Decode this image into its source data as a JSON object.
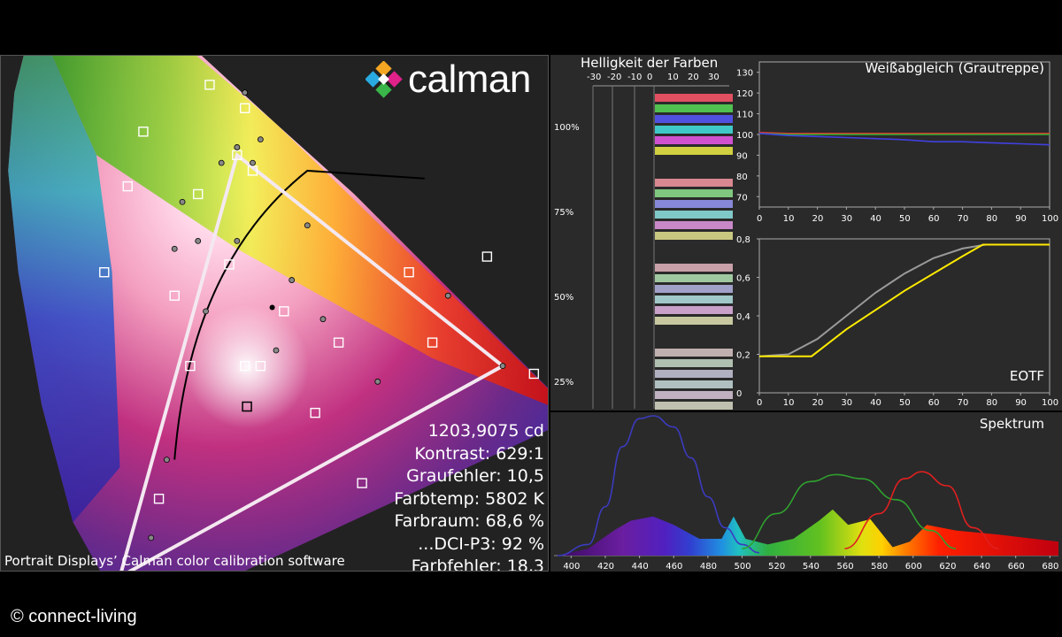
{
  "logo": {
    "text": "calman"
  },
  "footer": {
    "copyright": "© connect-living"
  },
  "caption": "Portrait Displays’ Calman color calibration software",
  "stats": [
    "1203,9075 cd",
    "Kontrast: 629:1",
    "Graufehler: 10,5",
    "Farbtemp: 5802 K",
    "Farbraum: 68,6 %",
    "...DCI-P3: 92 %",
    "Farbfehler: 18,3"
  ],
  "colors": {
    "panel_bg": "#2a2a2a",
    "yellow_line": "#ffeb00",
    "gray_line": "#9a9a9a"
  },
  "chart_data": [
    {
      "id": "cie",
      "type": "scatter",
      "title": "",
      "description_free": true,
      "gamut_target_triangle": [
        [
          0.68,
          0.32
        ],
        [
          0.265,
          0.69
        ],
        [
          0.15,
          0.06
        ]
      ],
      "measured_triangle": [
        [
          0.64,
          0.33
        ],
        [
          0.3,
          0.6
        ],
        [
          0.15,
          0.06
        ]
      ],
      "white_point": [
        0.3127,
        0.329
      ],
      "target_squares": [
        [
          0.3,
          0.6
        ],
        [
          0.265,
          0.69
        ],
        [
          0.18,
          0.63
        ],
        [
          0.16,
          0.56
        ],
        [
          0.13,
          0.45
        ],
        [
          0.22,
          0.42
        ],
        [
          0.25,
          0.55
        ],
        [
          0.31,
          0.66
        ],
        [
          0.32,
          0.58
        ],
        [
          0.29,
          0.46
        ],
        [
          0.36,
          0.4
        ],
        [
          0.43,
          0.36
        ],
        [
          0.52,
          0.45
        ],
        [
          0.62,
          0.47
        ],
        [
          0.68,
          0.32
        ],
        [
          0.55,
          0.36
        ],
        [
          0.4,
          0.27
        ],
        [
          0.24,
          0.33
        ],
        [
          0.2,
          0.16
        ],
        [
          0.15,
          0.06
        ],
        [
          0.46,
          0.18
        ],
        [
          0.33,
          0.33
        ],
        [
          0.31,
          0.33
        ]
      ],
      "measured_points": [
        [
          0.3,
          0.61
        ],
        [
          0.31,
          0.68
        ],
        [
          0.28,
          0.59
        ],
        [
          0.23,
          0.54
        ],
        [
          0.22,
          0.48
        ],
        [
          0.25,
          0.49
        ],
        [
          0.32,
          0.59
        ],
        [
          0.33,
          0.62
        ],
        [
          0.3,
          0.49
        ],
        [
          0.37,
          0.44
        ],
        [
          0.39,
          0.51
        ],
        [
          0.57,
          0.42
        ],
        [
          0.64,
          0.33
        ],
        [
          0.48,
          0.31
        ],
        [
          0.41,
          0.39
        ],
        [
          0.26,
          0.4
        ],
        [
          0.35,
          0.35
        ],
        [
          0.21,
          0.21
        ],
        [
          0.19,
          0.11
        ]
      ]
    },
    {
      "id": "saturation",
      "type": "bar",
      "title": "Helligkeit der Farben",
      "x_ticks": [
        "-30",
        "-20",
        "-10",
        "0",
        "10",
        "20",
        "30"
      ],
      "y_ticks": [
        "100%",
        "75%",
        "50%",
        "25%"
      ],
      "groups": [
        {
          "level": "100%",
          "colors": [
            "#e05060",
            "#50c050",
            "#5050e0",
            "#40c8c8",
            "#d050d0",
            "#d0d040"
          ]
        },
        {
          "level": "75%",
          "colors": [
            "#d88890",
            "#80c880",
            "#8888d8",
            "#80c8c8",
            "#c888c8",
            "#c8c880"
          ]
        },
        {
          "level": "50%",
          "colors": [
            "#c8a0a8",
            "#a0c8a0",
            "#a0a0c8",
            "#a0c8c8",
            "#c8a0c8",
            "#c8c8a0"
          ]
        },
        {
          "level": "25%",
          "colors": [
            "#c0b0b0",
            "#b0c0b0",
            "#b0b0c0",
            "#b0c0c0",
            "#c0b0c0",
            "#c0c0b0"
          ]
        }
      ]
    },
    {
      "id": "white-balance",
      "type": "line",
      "title": "Weißabgleich (Grautreppe)",
      "xlim": [
        0,
        100
      ],
      "ylim": [
        65,
        135
      ],
      "x_ticks": [
        "0",
        "10",
        "20",
        "30",
        "40",
        "50",
        "60",
        "70",
        "80",
        "90",
        "100"
      ],
      "y_ticks": [
        "130",
        "120",
        "110",
        "100",
        "90",
        "80",
        "70"
      ],
      "x": [
        0,
        10,
        20,
        30,
        40,
        50,
        60,
        70,
        80,
        90,
        100
      ],
      "series": [
        {
          "color": "#e03030",
          "values": [
            101,
            100.5,
            100.5,
            100.5,
            100.5,
            100.5,
            100.5,
            100.5,
            100.5,
            100.5,
            100.5
          ]
        },
        {
          "color": "#30b030",
          "values": [
            100.5,
            100,
            100,
            100,
            100,
            100,
            100,
            100,
            100,
            100,
            100
          ]
        },
        {
          "color": "#4040e0",
          "values": [
            100.5,
            99.5,
            99,
            98.5,
            98,
            97.5,
            96.5,
            96.5,
            96,
            95.5,
            95
          ]
        }
      ]
    },
    {
      "id": "eotf",
      "type": "line",
      "title": "EOTF",
      "xlim": [
        0,
        100
      ],
      "ylim": [
        0,
        0.8
      ],
      "x_ticks": [
        "0",
        "10",
        "20",
        "30",
        "40",
        "50",
        "60",
        "70",
        "80",
        "90",
        "100"
      ],
      "y_ticks": [
        "0,8",
        "0,6",
        "0,4",
        "0,2",
        "0"
      ],
      "series": [
        {
          "color": "#9a9a9a",
          "points": [
            [
              0,
              0.19
            ],
            [
              10,
              0.2
            ],
            [
              20,
              0.28
            ],
            [
              30,
              0.4
            ],
            [
              40,
              0.52
            ],
            [
              50,
              0.62
            ],
            [
              60,
              0.7
            ],
            [
              70,
              0.75
            ],
            [
              78,
              0.77
            ],
            [
              100,
              0.77
            ]
          ]
        },
        {
          "color": "#ffeb00",
          "points": [
            [
              0,
              0.19
            ],
            [
              18,
              0.19
            ],
            [
              30,
              0.33
            ],
            [
              50,
              0.53
            ],
            [
              70,
              0.71
            ],
            [
              77,
              0.77
            ],
            [
              100,
              0.77
            ]
          ]
        }
      ]
    },
    {
      "id": "spectrum",
      "type": "area",
      "title": "Spektrum",
      "xlim": [
        390,
        685
      ],
      "x_ticks": [
        "400",
        "420",
        "440",
        "460",
        "480",
        "500",
        "520",
        "540",
        "560",
        "580",
        "600",
        "620",
        "640",
        "660",
        "680"
      ],
      "series": [
        {
          "color": "#3b3bbf",
          "points": [
            [
              392,
              0.0
            ],
            [
              410,
              0.08
            ],
            [
              420,
              0.35
            ],
            [
              430,
              0.78
            ],
            [
              440,
              0.98
            ],
            [
              448,
              1.0
            ],
            [
              460,
              0.92
            ],
            [
              470,
              0.7
            ],
            [
              480,
              0.42
            ],
            [
              490,
              0.2
            ],
            [
              500,
              0.08
            ],
            [
              510,
              0.02
            ]
          ]
        },
        {
          "color": "#2fa02f",
          "points": [
            [
              500,
              0.05
            ],
            [
              520,
              0.3
            ],
            [
              540,
              0.53
            ],
            [
              555,
              0.58
            ],
            [
              570,
              0.55
            ],
            [
              590,
              0.4
            ],
            [
              610,
              0.18
            ],
            [
              625,
              0.05
            ]
          ]
        },
        {
          "color": "#e02020",
          "points": [
            [
              560,
              0.05
            ],
            [
              580,
              0.3
            ],
            [
              595,
              0.55
            ],
            [
              605,
              0.6
            ],
            [
              620,
              0.5
            ],
            [
              635,
              0.2
            ],
            [
              650,
              0.05
            ]
          ]
        },
        {
          "color": "spectral",
          "points": [
            [
              392,
              0.0
            ],
            [
              410,
              0.05
            ],
            [
              425,
              0.18
            ],
            [
              435,
              0.25
            ],
            [
              448,
              0.28
            ],
            [
              460,
              0.22
            ],
            [
              475,
              0.12
            ],
            [
              488,
              0.12
            ],
            [
              495,
              0.28
            ],
            [
              502,
              0.12
            ],
            [
              515,
              0.08
            ],
            [
              530,
              0.12
            ],
            [
              545,
              0.25
            ],
            [
              553,
              0.33
            ],
            [
              562,
              0.22
            ],
            [
              575,
              0.26
            ],
            [
              588,
              0.06
            ],
            [
              598,
              0.1
            ],
            [
              608,
              0.22
            ],
            [
              625,
              0.18
            ],
            [
              650,
              0.15
            ],
            [
              685,
              0.1
            ]
          ]
        }
      ]
    }
  ]
}
